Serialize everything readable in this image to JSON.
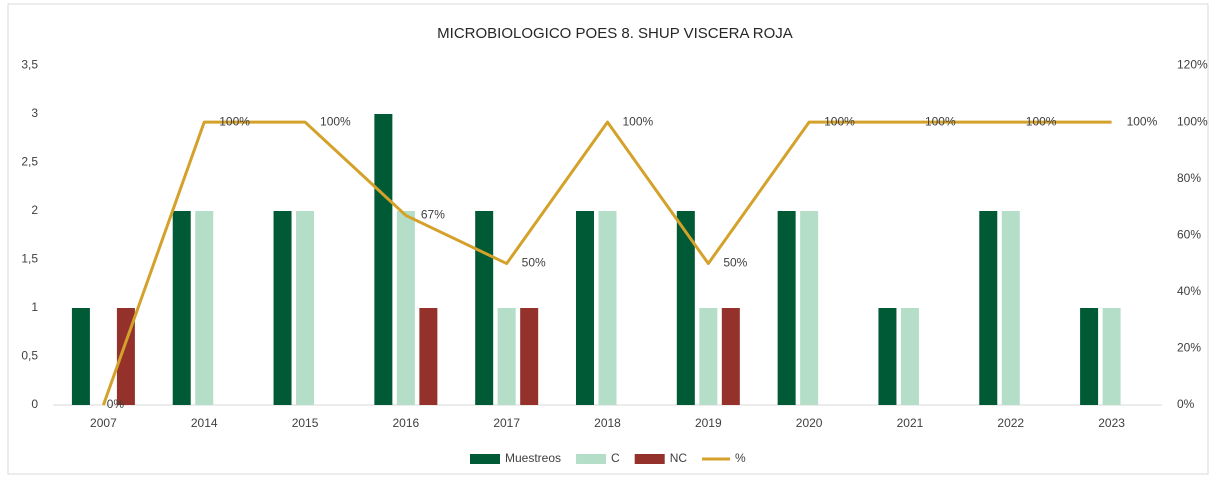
{
  "chart_data": {
    "type": "bar",
    "title": "MICROBIOLOGICO POES 8. SHUP VISCERA ROJA",
    "categories": [
      "2007",
      "2014",
      "2015",
      "2016",
      "2017",
      "2018",
      "2019",
      "2020",
      "2021",
      "2022",
      "2023"
    ],
    "series": [
      {
        "name": "Muestreos",
        "color": "#005a36",
        "values": [
          1,
          2,
          2,
          3,
          2,
          2,
          2,
          2,
          1,
          2,
          1
        ]
      },
      {
        "name": "C",
        "color": "#b4dec8",
        "values": [
          0,
          2,
          2,
          2,
          1,
          2,
          1,
          2,
          1,
          2,
          1
        ]
      },
      {
        "name": "NC",
        "color": "#93312a",
        "values": [
          1,
          0,
          0,
          1,
          1,
          0,
          1,
          0,
          0,
          0,
          0
        ]
      },
      {
        "name": "%",
        "color": "#d4a12a",
        "type": "line",
        "axis": "y2",
        "values": [
          0,
          100,
          100,
          67,
          50,
          100,
          50,
          100,
          100,
          100,
          100
        ],
        "value_labels": [
          "0%",
          "100%",
          "100%",
          "67%",
          "50%",
          "100%",
          "50%",
          "100%",
          "100%",
          "100%",
          "100%"
        ]
      }
    ],
    "ylim": [
      0,
      3.5
    ],
    "yticks": [
      0,
      {
        "value": 0.5,
        "label": "0,5"
      },
      1,
      {
        "value": 1.5,
        "label": "1,5"
      },
      2,
      {
        "value": 2.5,
        "label": "2,5"
      },
      3,
      {
        "value": 3.5,
        "label": "3,5"
      }
    ],
    "y2lim": [
      0,
      120
    ],
    "y2ticks": [
      {
        "value": 0,
        "label": "0%"
      },
      {
        "value": 20,
        "label": "20%"
      },
      {
        "value": 40,
        "label": "40%"
      },
      {
        "value": 60,
        "label": "60%"
      },
      {
        "value": 80,
        "label": "80%"
      },
      {
        "value": 100,
        "label": "100%"
      },
      {
        "value": 120,
        "label": "120%"
      }
    ],
    "legend": "bottom"
  }
}
